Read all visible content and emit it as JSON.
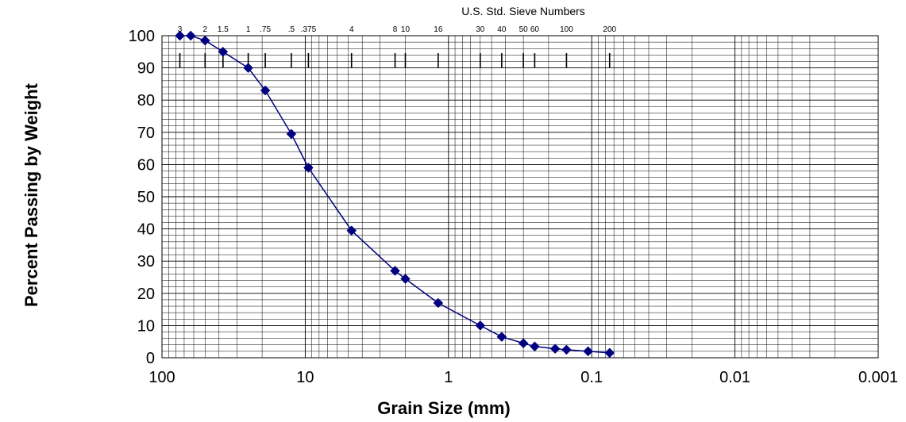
{
  "chart_data": {
    "type": "scatter",
    "title": "",
    "xlabel": "Grain Size (mm)",
    "ylabel": "Percent Passing by Weight",
    "x_scale": "log",
    "x_reversed": true,
    "xlim": [
      100,
      0.001
    ],
    "ylim": [
      0,
      100
    ],
    "grid": true,
    "x_tick_labels": [
      "100",
      "10",
      "1",
      "0.1",
      "0.01",
      "0.001"
    ],
    "y_tick_labels": [
      "0",
      "10",
      "20",
      "30",
      "40",
      "50",
      "60",
      "70",
      "80",
      "90",
      "100"
    ],
    "top_axis": {
      "title": "U.S. Std. Sieve Numbers",
      "sieves": [
        {
          "label": "3",
          "size": 75
        },
        {
          "label": "2",
          "size": 50
        },
        {
          "label": "1.5",
          "size": 37.5
        },
        {
          "label": "1",
          "size": 25
        },
        {
          "label": ".75",
          "size": 19
        },
        {
          "label": ".5",
          "size": 12.5
        },
        {
          "label": ".375",
          "size": 9.5
        },
        {
          "label": "4",
          "size": 4.75
        },
        {
          "label": "8",
          "size": 2.36
        },
        {
          "label": "10",
          "size": 2.0
        },
        {
          "label": "16",
          "size": 1.18
        },
        {
          "label": "30",
          "size": 0.6
        },
        {
          "label": "40",
          "size": 0.425
        },
        {
          "label": "50",
          "size": 0.3
        },
        {
          "label": "60",
          "size": 0.25
        },
        {
          "label": "100",
          "size": 0.15
        },
        {
          "label": "200",
          "size": 0.075
        }
      ]
    },
    "series": [
      {
        "marker": "diamond",
        "color": "#000080",
        "x": [
          75,
          63,
          50,
          37.5,
          25,
          19,
          12.5,
          9.5,
          4.75,
          2.36,
          2.0,
          1.18,
          0.6,
          0.425,
          0.3,
          0.25,
          0.18,
          0.15,
          0.106,
          0.075
        ],
        "y": [
          100,
          100,
          98.5,
          95,
          90,
          83,
          69.5,
          59,
          39.5,
          27,
          24.5,
          17,
          10,
          6.5,
          4.5,
          3.5,
          2.8,
          2.5,
          2,
          1.5
        ]
      }
    ]
  }
}
